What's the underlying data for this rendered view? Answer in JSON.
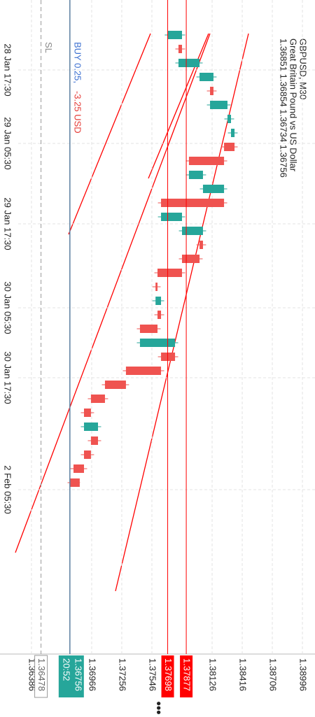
{
  "chart_data": {
    "type": "candlestick",
    "title": "GBPUSD, M30",
    "subtitle": "Great Britain Pound vs US Dollar",
    "ohlc_text": "1.36851 1.36854 1.36734 1.36756",
    "open": [
      1.377,
      1.37836,
      1.37802,
      1.38005,
      1.38139,
      1.38106,
      1.38274,
      1.38308,
      1.38342,
      1.38241,
      1.37903,
      1.38038,
      1.38241,
      1.37634,
      1.37836,
      1.38038,
      1.38005,
      1.37836,
      1.376,
      1.37581,
      1.37634,
      1.376,
      1.37431,
      1.37769,
      1.37634,
      1.37296,
      1.37094,
      1.36959,
      1.36892,
      1.37027,
      1.36959,
      1.36892,
      1.36851
    ],
    "high": [
      1.37866,
      1.37866,
      1.38035,
      1.38169,
      1.38169,
      1.38304,
      1.38338,
      1.38372,
      1.38372,
      1.38271,
      1.38068,
      1.38271,
      1.38271,
      1.37866,
      1.38068,
      1.38068,
      1.38035,
      1.37866,
      1.3763,
      1.37664,
      1.37664,
      1.3763,
      1.37799,
      1.37799,
      1.37664,
      1.37326,
      1.37124,
      1.36989,
      1.37057,
      1.37057,
      1.36989,
      1.36922,
      1.36854
    ],
    "low": [
      1.3767,
      1.37772,
      1.37772,
      1.37975,
      1.38076,
      1.38076,
      1.38244,
      1.38278,
      1.38211,
      1.37873,
      1.37873,
      1.38008,
      1.37604,
      1.37604,
      1.37806,
      1.37975,
      1.37806,
      1.3757,
      1.37551,
      1.37551,
      1.3757,
      1.37401,
      1.37401,
      1.37604,
      1.37266,
      1.37064,
      1.36929,
      1.36862,
      1.36862,
      1.36929,
      1.36862,
      1.36761,
      1.36734
    ],
    "close": [
      1.37836,
      1.37802,
      1.38005,
      1.38139,
      1.38106,
      1.38274,
      1.38308,
      1.38342,
      1.38241,
      1.37903,
      1.38038,
      1.38241,
      1.37634,
      1.37836,
      1.38038,
      1.38005,
      1.37836,
      1.376,
      1.37581,
      1.37634,
      1.376,
      1.37431,
      1.37769,
      1.37634,
      1.37296,
      1.37094,
      1.36959,
      1.36892,
      1.37027,
      1.36959,
      1.36892,
      1.36791,
      1.36756
    ],
    "up_color": "#26a69a",
    "down_color": "#ef5350",
    "xlim": [
      -2.5,
      44.25
    ],
    "xticks": [
      {
        "value": 2.5,
        "label": "28 Jan 17:30"
      },
      {
        "value": 7.75,
        "label": "29 Jan 05:30"
      },
      {
        "value": 13.5,
        "label": "29 Jan 17:30"
      },
      {
        "value": 19.5,
        "label": "30 Jan 05:30"
      },
      {
        "value": 24.5,
        "label": "30 Jan 17:30"
      },
      {
        "value": 32.5,
        "label": "2 Feb 05:30"
      }
    ],
    "ylim": [
      1.36083,
      1.39117
    ],
    "yticks": [
      1.36386,
      1.36966,
      1.37256,
      1.37546,
      1.38126,
      1.38416,
      1.38706,
      1.38996
    ],
    "grid": true,
    "levels": [
      {
        "value": 1.37877,
        "color": "#ff0000"
      },
      {
        "value": 1.37698,
        "color": "#ff0000"
      }
    ],
    "position": {
      "label": "BUY 0.25,",
      "profit": "-3.25 USD",
      "value": 1.36756,
      "timer": "20:52",
      "color": "#26a69a"
    },
    "stop_loss": {
      "label": "SL",
      "value": 1.36478
    }
  }
}
